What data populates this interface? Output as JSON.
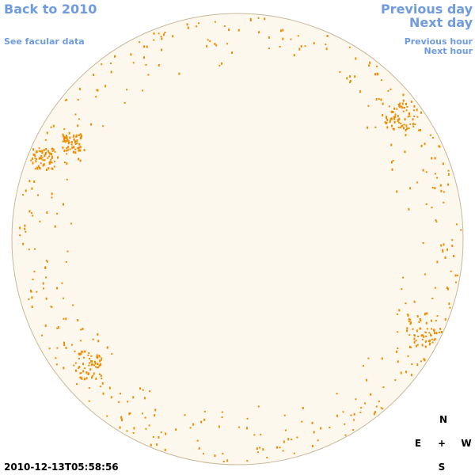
{
  "header": {
    "back_link": "Back to 2010",
    "facular_link": "See facular data",
    "previous_day": "Previous day",
    "next_day": "Next day",
    "previous_hour": "Previous hour",
    "next_hour": "Next hour"
  },
  "timestamp": "2010-12-13T05:58:56",
  "compass": {
    "north": "N",
    "east": "E",
    "center": "+",
    "west": "W",
    "south": "S"
  }
}
